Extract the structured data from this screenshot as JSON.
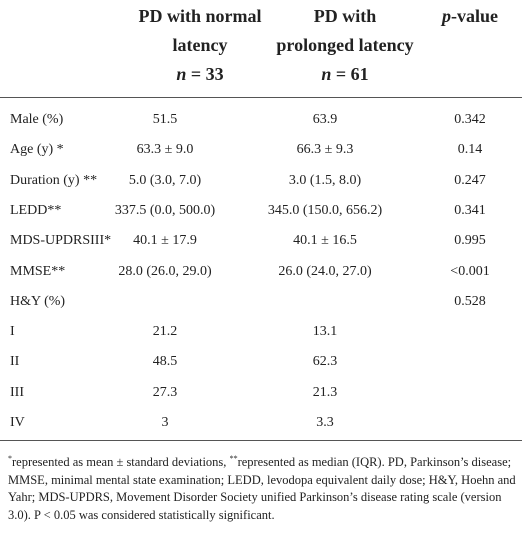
{
  "table": {
    "header": {
      "col1": {
        "title": "PD with normal latency",
        "n": "n",
        "n_value": "= 33"
      },
      "col2": {
        "title": "PD with prolonged latency",
        "n": "n",
        "n_value": "= 61"
      },
      "col3": {
        "p": "p",
        "rest": "-value"
      }
    },
    "rows": [
      [
        "Male (%)",
        "51.5",
        "63.9",
        "0.342"
      ],
      [
        "Age (y) *",
        "63.3 ± 9.0",
        "66.3 ± 9.3",
        "0.14"
      ],
      [
        "Duration (y) **",
        "5.0 (3.0, 7.0)",
        "3.0 (1.5, 8.0)",
        "0.247"
      ],
      [
        "LEDD**",
        "337.5 (0.0, 500.0)",
        "345.0 (150.0, 656.2)",
        "0.341"
      ],
      [
        "MDS-UPDRSIII*",
        "40.1 ± 17.9",
        "40.1 ± 16.5",
        "0.995"
      ],
      [
        "MMSE**",
        "28.0 (26.0, 29.0)",
        "26.0 (24.0, 27.0)",
        "<0.001"
      ],
      [
        "H&Y (%)",
        null,
        null,
        "0.528"
      ],
      [
        "I",
        "21.2",
        "13.1",
        null
      ],
      [
        "II",
        "48.5",
        "62.3",
        null
      ],
      [
        "III",
        "27.3",
        "21.3",
        null
      ],
      [
        "IV",
        "3",
        "3.3",
        null
      ]
    ],
    "footnote": [
      "*",
      "represented as mean ± standard deviations, ",
      "**",
      "represented as median (IQR). PD, Parkinson’s disease; MMSE, minimal mental state examination; LEDD, levodopa equivalent daily dose; H&Y, Hoehn and Yahr; MDS-UPDRS, Movement Disorder Society unified Parkinson’s disease rating scale (version 3.0). P < 0.05 was considered statistically significant."
    ]
  }
}
